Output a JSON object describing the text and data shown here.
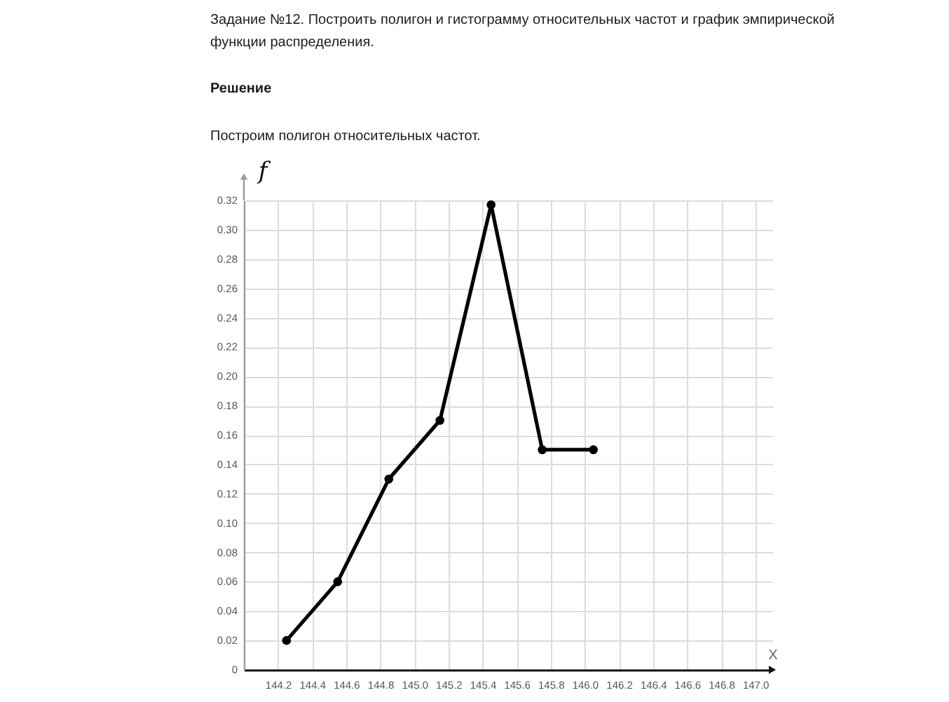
{
  "chart_data": {
    "type": "line",
    "title": "Задание №12. Построить полигон и гистограмму относительных частот и график эмпирической функции распределения.",
    "subtitle": "Решение",
    "annotations": [
      "Построим полигон относительных частот."
    ],
    "xlabel": "X",
    "ylabel": "f",
    "x": [
      144.25,
      144.55,
      144.85,
      145.15,
      145.45,
      145.75,
      146.05
    ],
    "series": [
      {
        "color": "#000000",
        "values": [
          0.02,
          0.06,
          0.13,
          0.17,
          0.317,
          0.15,
          0.15
        ]
      }
    ],
    "xlim": [
      144.0,
      147.1
    ],
    "ylim": [
      0,
      0.32
    ],
    "xticks": [
      144.2,
      144.4,
      144.6,
      144.8,
      {
        "value": 145,
        "label": "145.0"
      },
      145.2,
      145.4,
      145.6,
      145.8,
      {
        "value": 146,
        "label": "146.0"
      },
      146.2,
      146.4,
      146.6,
      146.8,
      {
        "value": 147,
        "label": "147.0"
      }
    ],
    "yticks": [
      0,
      0.02,
      0.04,
      0.06,
      0.08,
      {
        "value": 0.1,
        "label": "0.10"
      },
      0.12,
      0.14,
      0.16,
      0.18,
      {
        "value": 0.2,
        "label": "0.20"
      },
      0.22,
      0.24,
      0.26,
      0.28,
      {
        "value": 0.3,
        "label": "0.30"
      },
      0.32
    ],
    "grid": true,
    "marker": "circle",
    "line_style": "solid"
  }
}
